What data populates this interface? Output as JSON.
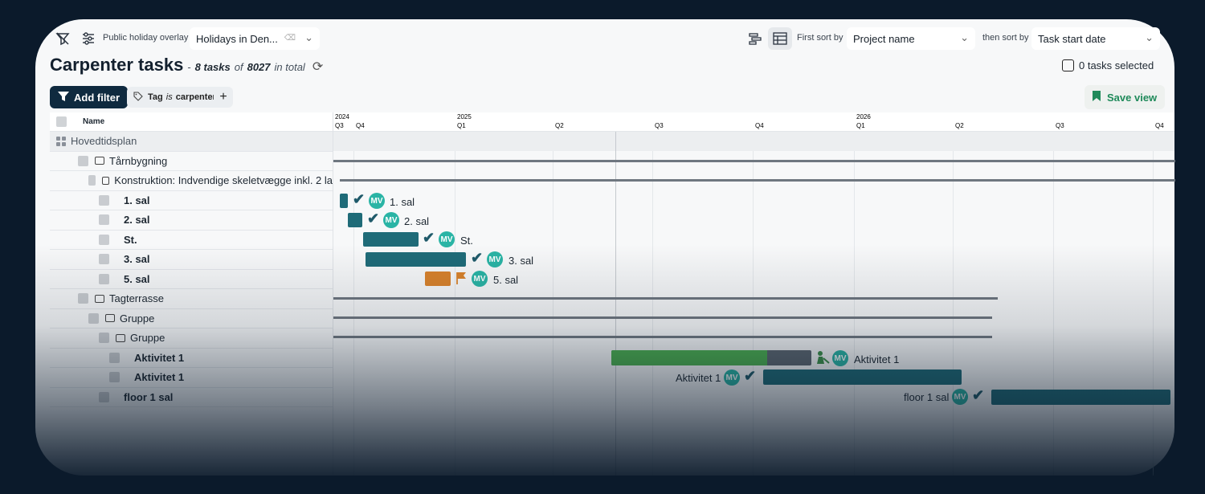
{
  "toolbar": {
    "holiday_overlay_label": "Public holiday overlay",
    "holiday_value": "Holidays in Den...",
    "first_sort_label": "First sort by",
    "first_sort_value": "Project name",
    "then_sort_label": "then sort by",
    "then_sort_value": "Task start date"
  },
  "header": {
    "title": "Carpenter tasks",
    "dash": "-",
    "count": "8 tasks",
    "of": "of",
    "total": "8027",
    "in_total": "in total",
    "selected": "0 tasks selected"
  },
  "filters": {
    "add_filter": "Add filter",
    "tag_prefix": "Tag",
    "tag_is": "is",
    "tag_value": "carpenter",
    "plus": "+",
    "save_view": "Save view"
  },
  "grid": {
    "name_header": "Name",
    "rows": [
      {
        "label": "Hovedtidsplan",
        "indent": 0,
        "type": "project"
      },
      {
        "label": "Tårnbygning",
        "indent": 1,
        "type": "folder"
      },
      {
        "label": "Konstruktion: Indvendige skeletvægge inkl. 2 la",
        "indent": 2,
        "type": "folder"
      },
      {
        "label": "1. sal",
        "indent": 3,
        "type": "task"
      },
      {
        "label": "2. sal",
        "indent": 3,
        "type": "task"
      },
      {
        "label": "St.",
        "indent": 3,
        "type": "task"
      },
      {
        "label": "3. sal",
        "indent": 3,
        "type": "task"
      },
      {
        "label": "5. sal",
        "indent": 3,
        "type": "task"
      },
      {
        "label": "Tagterrasse",
        "indent": 1,
        "type": "folder"
      },
      {
        "label": "Gruppe",
        "indent": 2,
        "type": "folder"
      },
      {
        "label": "Gruppe",
        "indent": 3,
        "type": "folder"
      },
      {
        "label": "Aktivitet 1",
        "indent": 4,
        "type": "task"
      },
      {
        "label": "Aktivitet 1",
        "indent": 4,
        "type": "task"
      },
      {
        "label": "floor 1 sal",
        "indent": 3,
        "type": "task"
      }
    ]
  },
  "timeline": {
    "years": [
      "2024",
      "2025",
      "2026"
    ],
    "quarters": [
      "Q3",
      "Q4",
      "Q1",
      "Q2",
      "Q3",
      "Q4",
      "Q1",
      "Q2",
      "Q3",
      "Q4"
    ],
    "avatar_initials": "MV",
    "bar_labels": [
      "1. sal",
      "2. sal",
      "St.",
      "3. sal",
      "5. sal",
      "Aktivitet 1",
      "Aktivitet 1",
      "floor 1 sal"
    ],
    "colors": {
      "teal": "#1f6b78",
      "orange": "#d9822b",
      "green": "#4caf50",
      "grey": "#5c6670",
      "avatar": "#2ab4a5"
    }
  }
}
